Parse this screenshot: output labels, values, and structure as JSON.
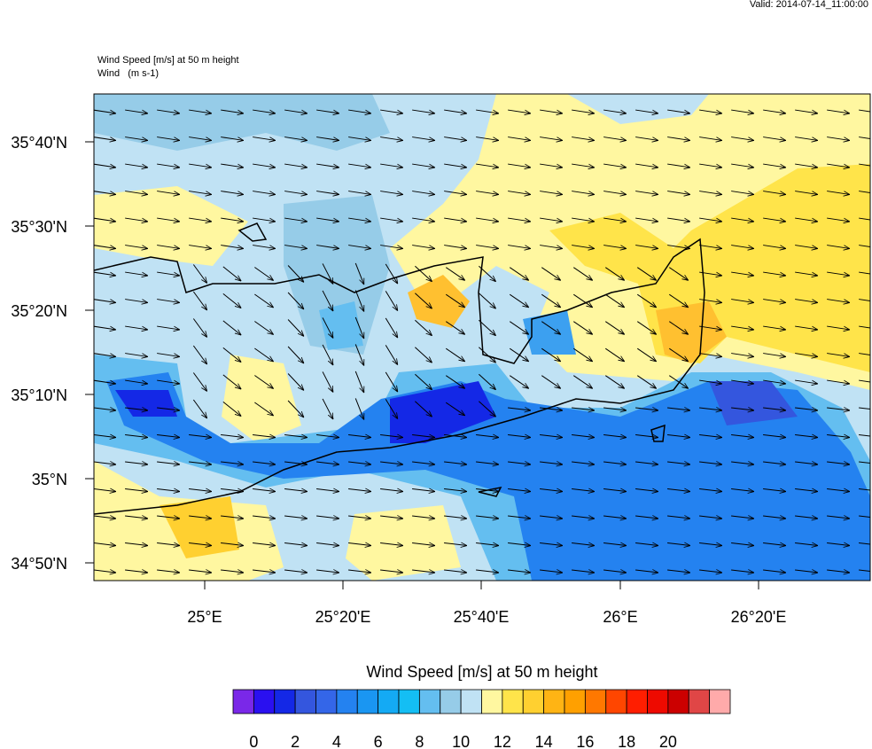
{
  "header": {
    "valid": "Valid: 2014-07-14_11:00:00"
  },
  "map": {
    "field_title": "Wind Speed [m/s] at 50 m height",
    "vector_title": "Wind   (m s-1)",
    "lat_labels": [
      "35°40'N",
      "35°30'N",
      "35°20'N",
      "35°10'N",
      "35°N",
      "34°50'N"
    ],
    "lon_labels": [
      "25°E",
      "25°20'E",
      "25°40'E",
      "26°E",
      "26°20'E"
    ]
  },
  "colorbar": {
    "title": "Wind Speed [m/s] at 50 m height",
    "colors": [
      "#7a28e8",
      "#2a10f0",
      "#1428e6",
      "#3456de",
      "#3466e8",
      "#2482f0",
      "#1a96f2",
      "#14aaf4",
      "#14bef4",
      "#64bef0",
      "#96cce8",
      "#c0e2f4",
      "#fff7a0",
      "#ffe44a",
      "#ffd030",
      "#ffb414",
      "#ffa000",
      "#ff7800",
      "#ff4600",
      "#ff1e00",
      "#ee0a00",
      "#cc0000",
      "#e04646",
      "#ffaaaa"
    ],
    "labels": [
      "0",
      "2",
      "4",
      "6",
      "8",
      "10",
      "12",
      "14",
      "16",
      "18",
      "20"
    ]
  }
}
